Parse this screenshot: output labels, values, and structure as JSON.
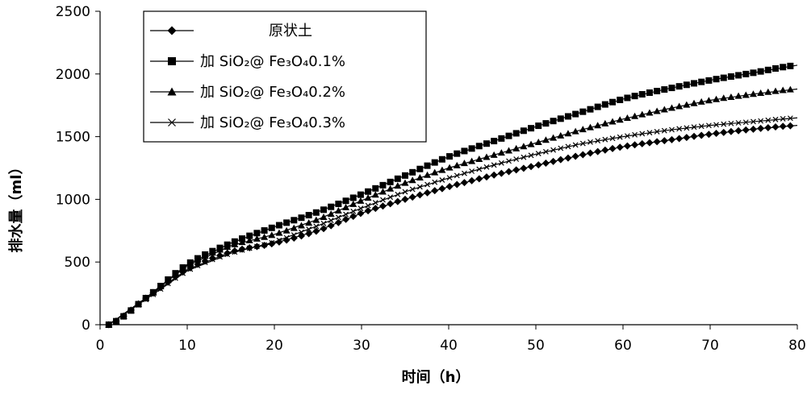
{
  "chart_data": {
    "type": "line",
    "title": "",
    "xlabel": "时间（h）",
    "ylabel": "排水量（ml）",
    "xlim": [
      0,
      80
    ],
    "ylim": [
      0,
      2500
    ],
    "x_ticks": [
      "0",
      "10",
      "20",
      "30",
      "40",
      "50",
      "60",
      "70",
      "80"
    ],
    "y_ticks": [
      "0",
      "500",
      "1000",
      "1500",
      "2000",
      "2500"
    ],
    "grid": false,
    "legend": "top-left",
    "x": [
      1,
      5,
      10,
      15,
      20,
      25,
      30,
      35,
      40,
      45,
      50,
      55,
      60,
      65,
      70,
      75,
      80
    ],
    "series": [
      {
        "name": "原状土",
        "marker": "diamond",
        "color": "#000000",
        "values": [
          0,
          200,
          440,
          580,
          650,
          750,
          890,
          1000,
          1100,
          1190,
          1270,
          1350,
          1420,
          1470,
          1520,
          1560,
          1590
        ]
      },
      {
        "name": "加 SiO₂@ Fe₃O₄0.1%",
        "marker": "square",
        "color": "#000000",
        "values": [
          0,
          200,
          480,
          650,
          780,
          900,
          1040,
          1190,
          1340,
          1460,
          1580,
          1690,
          1800,
          1880,
          1950,
          2010,
          2070
        ]
      },
      {
        "name": "加 SiO₂@ Fe₃O₄0.2%",
        "marker": "triangle",
        "color": "#000000",
        "values": [
          0,
          200,
          470,
          630,
          720,
          840,
          990,
          1130,
          1250,
          1350,
          1450,
          1550,
          1640,
          1720,
          1790,
          1840,
          1880
        ]
      },
      {
        "name": "加 SiO₂@ Fe₃O₄0.3%",
        "marker": "x",
        "color": "#000000",
        "values": [
          0,
          190,
          430,
          570,
          660,
          790,
          930,
          1060,
          1170,
          1270,
          1360,
          1440,
          1500,
          1550,
          1590,
          1620,
          1650
        ]
      }
    ]
  }
}
